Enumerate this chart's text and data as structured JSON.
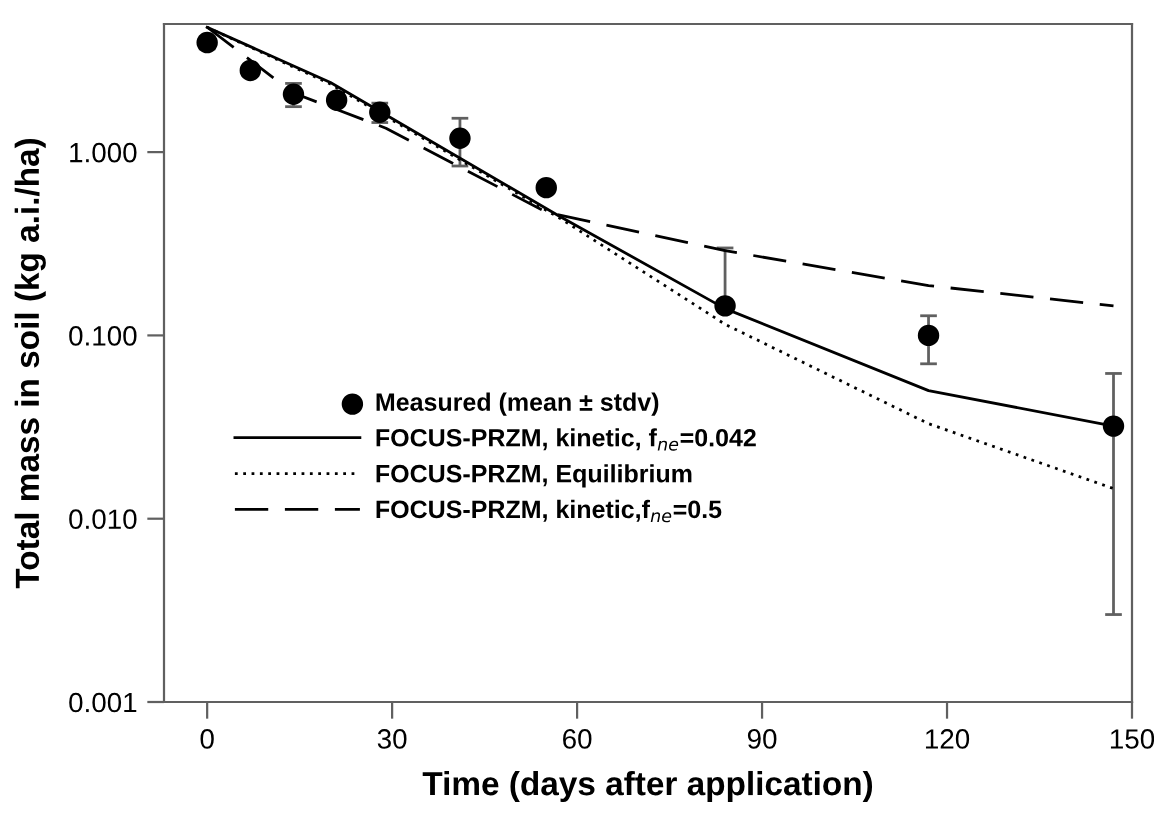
{
  "chart_data": {
    "type": "line",
    "xlabel": "Time (days after application)",
    "ylabel": "Total mass in soil (kg a.i./ha)",
    "log": "y",
    "xlim": [
      -7,
      150
    ],
    "xticks": [
      0,
      30,
      60,
      90,
      120,
      150
    ],
    "ylim": [
      0.001,
      5
    ],
    "yticks": [
      {
        "value": 0.001,
        "label": "0.001"
      },
      {
        "value": 0.01,
        "label": "0.010"
      },
      {
        "value": 0.1,
        "label": "0.100"
      },
      {
        "value": 1,
        "label": "1.000"
      }
    ],
    "grid": false,
    "legend": "center left",
    "series": [
      {
        "name": "Measured (mean ± stdv)",
        "type": "scatter",
        "marker": "circle",
        "color": "#000000",
        "x": [
          0,
          7,
          14,
          21,
          28,
          41,
          55,
          84,
          117,
          147
        ],
        "values": [
          3.96,
          2.79,
          2.07,
          1.92,
          1.65,
          1.19,
          0.64,
          0.145,
          0.1,
          0.032
        ],
        "errors": [
          0.3,
          null,
          0.3,
          null,
          0.2,
          [
            0.84,
            1.53
          ],
          null,
          [
            0.145,
            0.3
          ],
          [
            0.07,
            0.128
          ],
          [
            0.003,
            0.062
          ]
        ]
      },
      {
        "name": "FOCUS-PRZM, kinetic, f$_{ne}$=0.042",
        "type": "line",
        "line_style": "solid",
        "color": "#000000",
        "x": [
          0,
          20,
          57,
          84,
          117,
          147
        ],
        "values": [
          4.8,
          2.4,
          0.45,
          0.14,
          0.05,
          0.032
        ]
      },
      {
        "name": "FOCUS-PRZM, Equilibrium",
        "type": "line",
        "line_style": "dotted",
        "color": "#000000",
        "x": [
          0,
          20,
          57,
          84,
          117,
          147
        ],
        "values": [
          4.8,
          2.35,
          0.44,
          0.115,
          0.033,
          0.0146
        ]
      },
      {
        "name": "FOCUS-PRZM, kinetic,f$_{ne}$=0.5",
        "type": "line",
        "line_style": "dashed",
        "color": "#000000",
        "x": [
          0,
          14,
          29,
          55,
          84,
          117,
          147
        ],
        "values": [
          4.8,
          2.1,
          1.35,
          0.47,
          0.29,
          0.187,
          0.145
        ]
      }
    ]
  }
}
